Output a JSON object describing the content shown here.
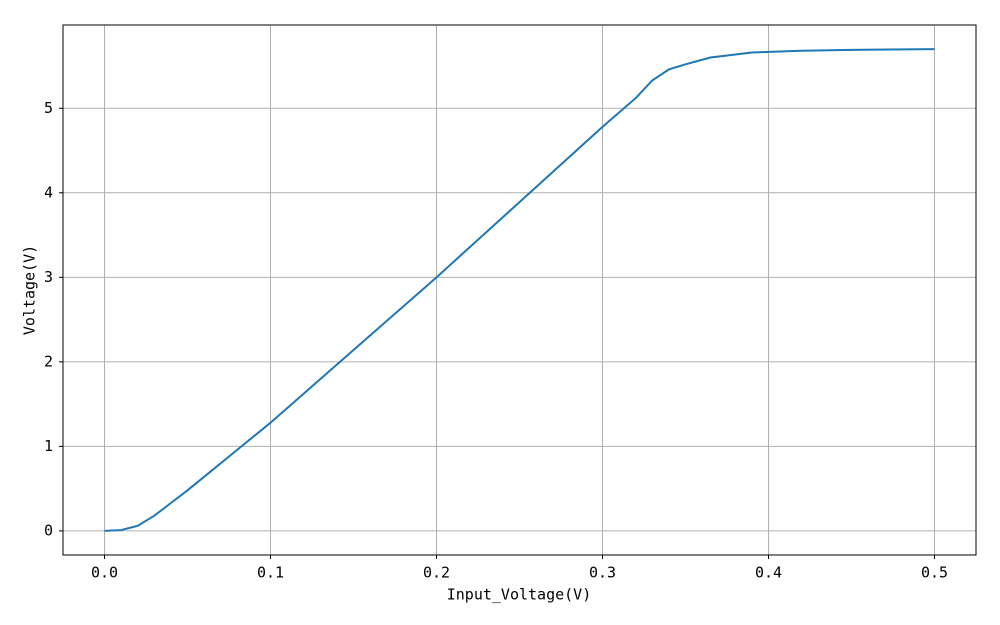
{
  "chart_data": {
    "type": "line",
    "x_label": "Input_Voltage(V)",
    "y_label": "Voltage(V)",
    "x": [
      0,
      0.01,
      0.02,
      0.03,
      0.04,
      0.05,
      0.06,
      0.08,
      0.1,
      0.15,
      0.2,
      0.25,
      0.3,
      0.32,
      0.33,
      0.34,
      0.35,
      0.365,
      0.39,
      0.42,
      0.45,
      0.5
    ],
    "series": [
      {
        "color": "#1f77b4",
        "values": [
          0,
          0.01,
          0.06,
          0.18,
          0.33,
          0.48,
          0.64,
          0.96,
          1.28,
          2.14,
          3.0,
          3.89,
          4.78,
          5.12,
          5.33,
          5.46,
          5.52,
          5.6,
          5.66,
          5.68,
          5.69,
          5.7
        ]
      }
    ],
    "xlim": [
      -0.025,
      0.525
    ],
    "ylim": [
      -0.285,
      5.985
    ],
    "xticks": [
      {
        "value": 0,
        "label": "0.0"
      },
      0.1,
      0.2,
      0.3,
      0.4,
      0.5
    ],
    "yticks": [
      0,
      1,
      2,
      3,
      4,
      5
    ],
    "grid": true
  }
}
